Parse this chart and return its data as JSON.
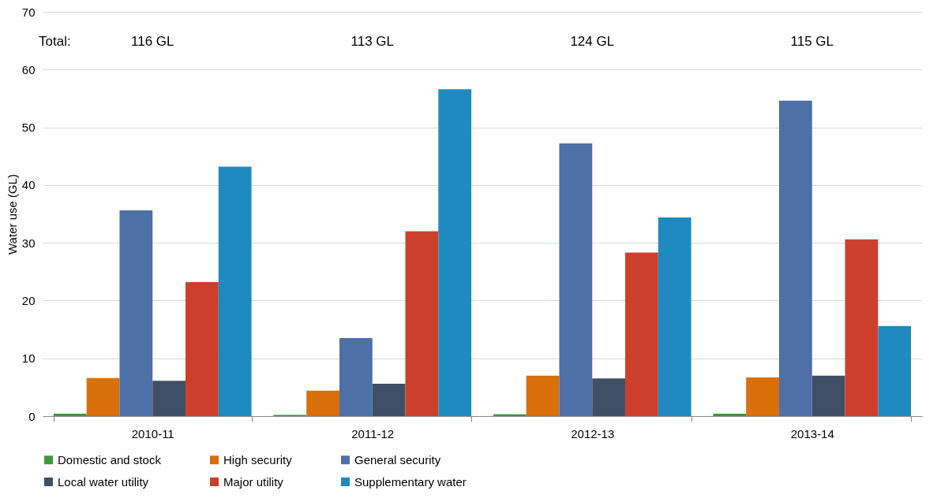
{
  "chart_data": {
    "type": "bar",
    "ylabel": "Water use (GL)",
    "categories": [
      "2010-11",
      "2011-12",
      "2012-13",
      "2013-14"
    ],
    "series": [
      {
        "name": "Domestic and stock",
        "color": "#3a9a3a",
        "values": [
          0.4,
          0.2,
          0.3,
          0.4
        ]
      },
      {
        "name": "High security",
        "color": "#d9700a",
        "values": [
          6.6,
          4.4,
          7.0,
          6.7
        ]
      },
      {
        "name": "General security",
        "color": "#4f6fa8",
        "values": [
          35.6,
          13.5,
          47.2,
          54.6
        ]
      },
      {
        "name": "Local water utility",
        "color": "#3f4f66",
        "values": [
          6.1,
          5.6,
          6.5,
          7.0
        ]
      },
      {
        "name": "Major utility",
        "color": "#cc3f2c",
        "values": [
          23.2,
          32.0,
          28.3,
          30.6
        ]
      },
      {
        "name": "Supplementary water",
        "color": "#1f8ac0",
        "values": [
          43.2,
          56.6,
          34.4,
          15.6
        ]
      }
    ],
    "ylim": [
      0,
      70
    ],
    "yticks": [
      0,
      10,
      20,
      30,
      40,
      50,
      60,
      70
    ],
    "grid": "y",
    "legend": "bottom",
    "annotations": [
      "Total:",
      "116 GL",
      "113 GL",
      "124 GL",
      "115 GL"
    ]
  }
}
